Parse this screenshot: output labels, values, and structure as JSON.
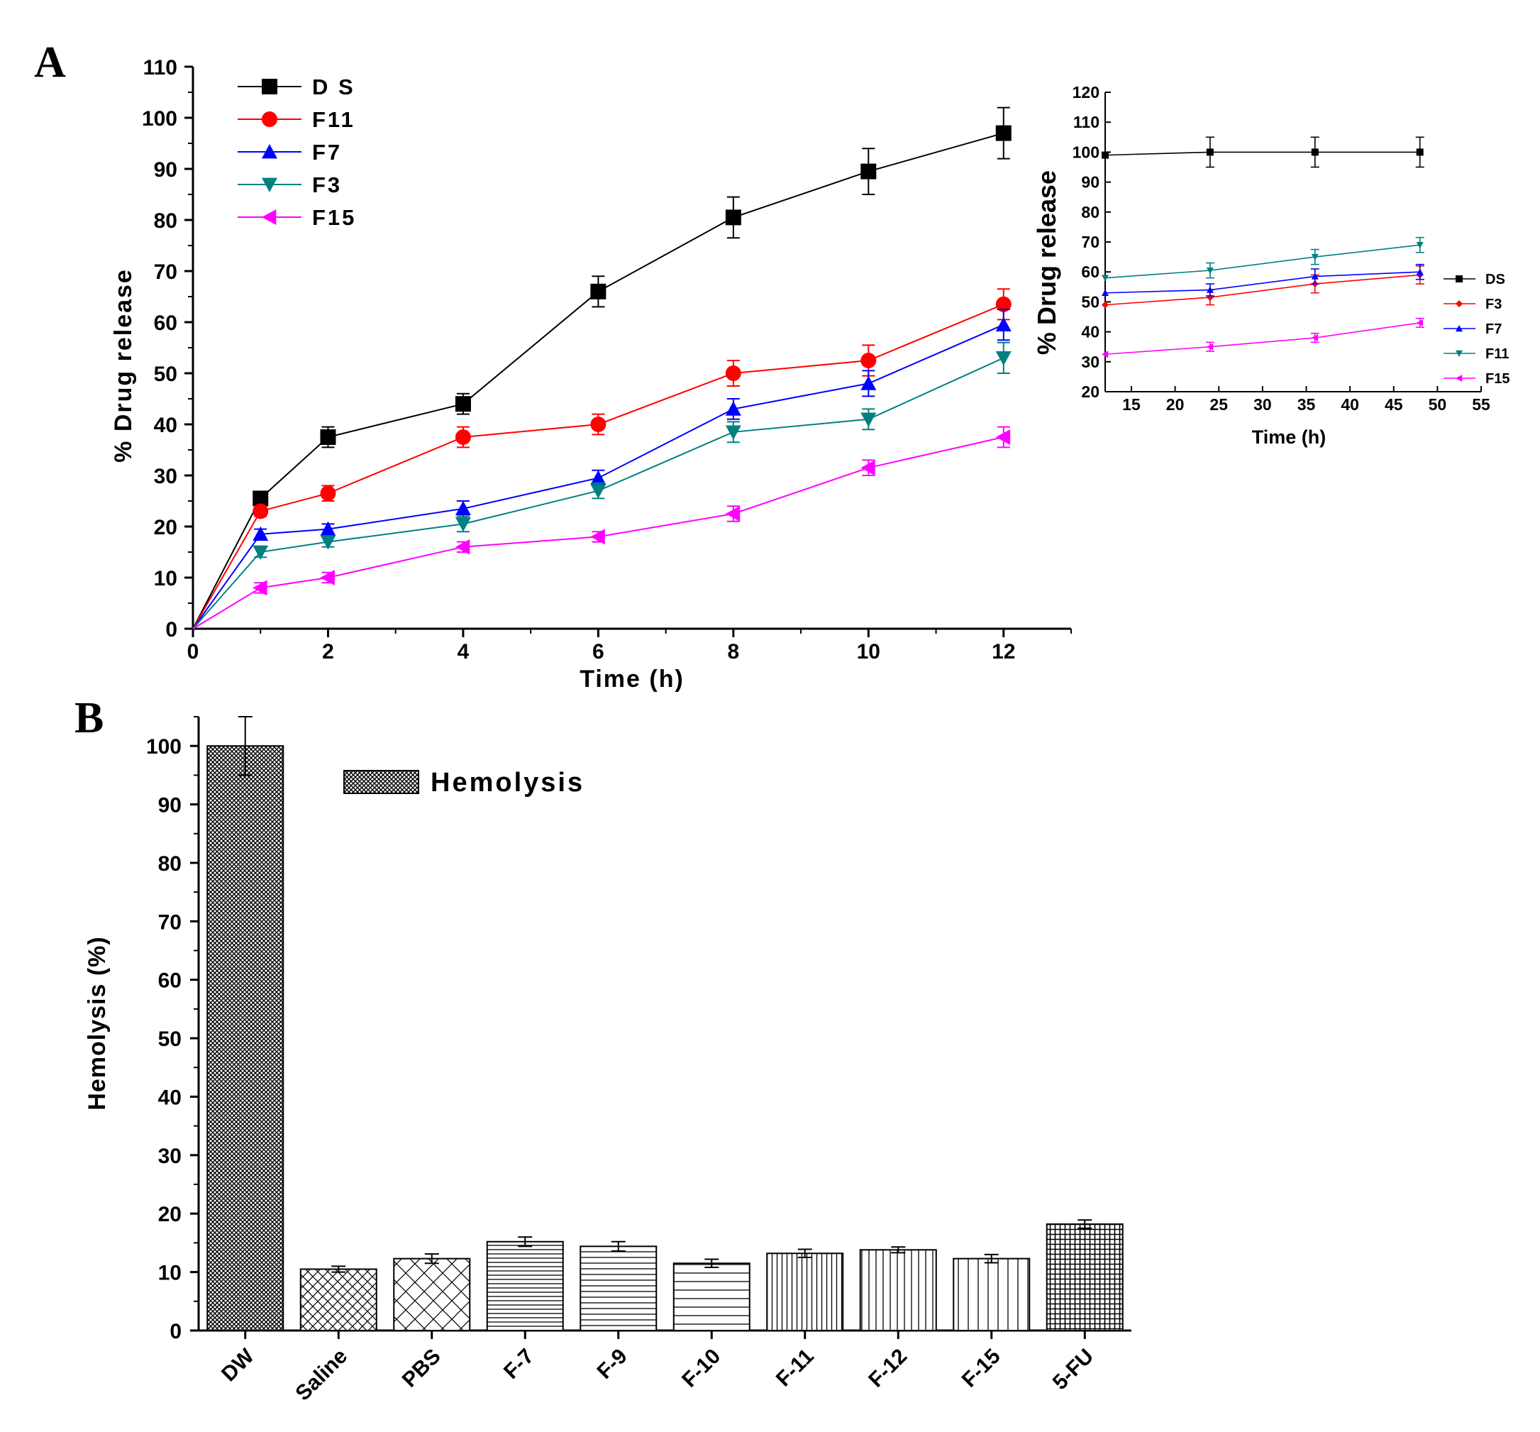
{
  "figure": {
    "panel_a_label": "A",
    "panel_b_label": "B"
  },
  "colors": {
    "DS": "#000000",
    "F11": "#ff0000",
    "F7": "#0000ff",
    "F3": "#008080",
    "F15": "#ff00ff",
    "axis": "#000000"
  },
  "chart_data": [
    {
      "id": "panel-a-main",
      "type": "line",
      "title": "",
      "xlabel": "Time  (h)",
      "ylabel": "% Drug release",
      "xlim": [
        0,
        13
      ],
      "ylim": [
        0,
        110
      ],
      "xticks": [
        0,
        2,
        4,
        6,
        8,
        10,
        12
      ],
      "yticks": [
        0,
        10,
        20,
        30,
        40,
        50,
        60,
        70,
        80,
        90,
        100,
        110
      ],
      "legend_position": "top-left",
      "series": [
        {
          "key": "DS",
          "name": "D S",
          "color": "#000000",
          "marker": "square",
          "x": [
            0,
            1,
            2,
            4,
            6,
            8,
            10,
            12
          ],
          "y": [
            0,
            25.5,
            37.5,
            44,
            66,
            80.5,
            89.5,
            97
          ],
          "err": [
            0,
            1,
            2,
            2,
            3,
            4,
            4.5,
            5
          ]
        },
        {
          "key": "F11",
          "name": "F11",
          "color": "#ff0000",
          "marker": "circle",
          "x": [
            0,
            1,
            2,
            4,
            6,
            8,
            10,
            12
          ],
          "y": [
            0,
            23,
            26.5,
            37.5,
            40,
            50,
            52.5,
            63.5
          ],
          "err": [
            0,
            1,
            1.5,
            2,
            2,
            2.5,
            3,
            3
          ]
        },
        {
          "key": "F7",
          "name": "F7",
          "color": "#0000ff",
          "marker": "triangle-up",
          "x": [
            0,
            1,
            2,
            4,
            6,
            8,
            10,
            12
          ],
          "y": [
            0,
            18.5,
            19.5,
            23.5,
            29.5,
            43,
            48,
            59.5
          ],
          "err": [
            0,
            1,
            1,
            1.5,
            1.5,
            2,
            2.5,
            3
          ]
        },
        {
          "key": "F3",
          "name": "F3",
          "color": "#008080",
          "marker": "triangle-down",
          "x": [
            0,
            1,
            2,
            4,
            6,
            8,
            10,
            12
          ],
          "y": [
            0,
            15,
            17,
            20.5,
            27,
            38.5,
            41,
            53
          ],
          "err": [
            0,
            1,
            1,
            1.5,
            1.5,
            2,
            2,
            3
          ]
        },
        {
          "key": "F15",
          "name": "F15",
          "color": "#ff00ff",
          "marker": "triangle-left",
          "x": [
            0,
            1,
            2,
            4,
            6,
            8,
            10,
            12
          ],
          "y": [
            0,
            8,
            10,
            16,
            18,
            22.5,
            31.5,
            37.5
          ],
          "err": [
            0,
            1,
            1,
            1,
            1,
            1.5,
            1.5,
            2
          ]
        }
      ]
    },
    {
      "id": "panel-a-inset",
      "type": "line",
      "title": "",
      "xlabel": "Time (h)",
      "ylabel": "% Drug release",
      "xlim": [
        12,
        55
      ],
      "ylim": [
        20,
        120
      ],
      "xticks": [
        15,
        20,
        25,
        30,
        35,
        40,
        45,
        50,
        55
      ],
      "yticks": [
        20,
        30,
        40,
        50,
        60,
        70,
        80,
        90,
        100,
        110,
        120
      ],
      "legend_position": "right",
      "series": [
        {
          "key": "DS",
          "name": "DS",
          "color": "#000000",
          "marker": "square",
          "x": [
            12,
            24,
            36,
            48
          ],
          "y": [
            99,
            100,
            100,
            100
          ],
          "err": [
            0,
            5,
            5,
            5
          ]
        },
        {
          "key": "F3",
          "name": "F3",
          "color": "#ff0000",
          "marker": "diamond",
          "x": [
            12,
            24,
            36,
            48
          ],
          "y": [
            49,
            51.5,
            56,
            59
          ],
          "err": [
            0,
            2.5,
            3,
            3
          ]
        },
        {
          "key": "F7",
          "name": "F7",
          "color": "#0000ff",
          "marker": "triangle-up",
          "x": [
            12,
            24,
            36,
            48
          ],
          "y": [
            53,
            54,
            58.5,
            60
          ],
          "err": [
            0,
            2,
            2.5,
            2.5
          ]
        },
        {
          "key": "F11",
          "name": "F11",
          "color": "#008080",
          "marker": "triangle-down",
          "x": [
            12,
            24,
            36,
            48
          ],
          "y": [
            58,
            60.5,
            65,
            69
          ],
          "err": [
            0,
            2.5,
            2.5,
            2.5
          ]
        },
        {
          "key": "F15",
          "name": "F15",
          "color": "#ff00ff",
          "marker": "triangle-left",
          "x": [
            12,
            24,
            36,
            48
          ],
          "y": [
            32.5,
            35,
            38,
            43
          ],
          "err": [
            0,
            1.5,
            1.5,
            1.5
          ]
        }
      ]
    },
    {
      "id": "panel-b",
      "type": "bar",
      "title": "",
      "xlabel": "",
      "ylabel": "Hemolysis (%)",
      "ylim": [
        0,
        105
      ],
      "yticks": [
        0,
        10,
        20,
        30,
        40,
        50,
        60,
        70,
        80,
        90,
        100
      ],
      "legend_position": "top",
      "legend": [
        "Hemolysis"
      ],
      "categories": [
        "DW",
        "Saline",
        "PBS",
        "F-7",
        "F-9",
        "F-10",
        "F-11",
        "F-12",
        "F-15",
        "5-FU"
      ],
      "values": [
        100,
        10.5,
        12.3,
        15.2,
        14.4,
        11.5,
        13.2,
        13.8,
        12.3,
        18.2
      ],
      "err": [
        5,
        0.5,
        0.8,
        0.8,
        0.8,
        0.7,
        0.7,
        0.5,
        0.7,
        0.7
      ]
    }
  ]
}
